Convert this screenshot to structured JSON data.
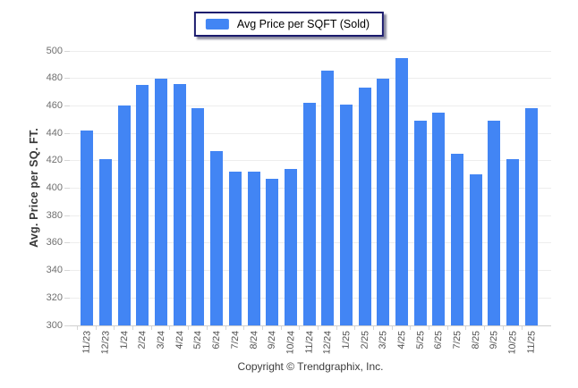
{
  "legend": {
    "label": "Avg Price per SQFT (Sold)",
    "swatch_icon": "blue-square-swatch",
    "border_color": "#1b1b6e"
  },
  "footer": {
    "copyright": "Copyright © Trendgraphix, Inc."
  },
  "colors": {
    "bar": "#4285f4",
    "gridline": "#ededed",
    "axis_line": "#cfcfcf",
    "y_tick_label": "#6f6f6f",
    "x_tick_label": "#4c4c4c"
  },
  "chart_data": {
    "type": "bar",
    "title": "",
    "xlabel": "",
    "ylabel": "Avg. Price per SQ. FT.",
    "ylim": [
      300,
      500
    ],
    "ytick_step": 20,
    "ytick_labels": [
      "300",
      "320",
      "340",
      "360",
      "380",
      "400",
      "420",
      "440",
      "460",
      "480",
      "500"
    ],
    "grid": true,
    "legend_position": "top-center",
    "bar_color": "#4285f4",
    "categories": [
      "11/23",
      "12/23",
      "1/24",
      "2/24",
      "3/24",
      "4/24",
      "5/24",
      "6/24",
      "7/24",
      "8/24",
      "9/24",
      "10/24",
      "11/24",
      "12/24",
      "1/25",
      "2/25",
      "3/25",
      "4/25",
      "5/25",
      "6/25",
      "7/25",
      "8/25",
      "9/25",
      "10/25",
      "11/25"
    ],
    "series": [
      {
        "name": "Avg Price per SQFT (Sold)",
        "values": [
          442,
          421,
          460,
          475,
          480,
          476,
          458,
          427,
          412,
          412,
          407,
          414,
          462,
          486,
          461,
          473,
          480,
          495,
          449,
          455,
          425,
          410,
          449,
          421,
          458
        ]
      }
    ]
  }
}
